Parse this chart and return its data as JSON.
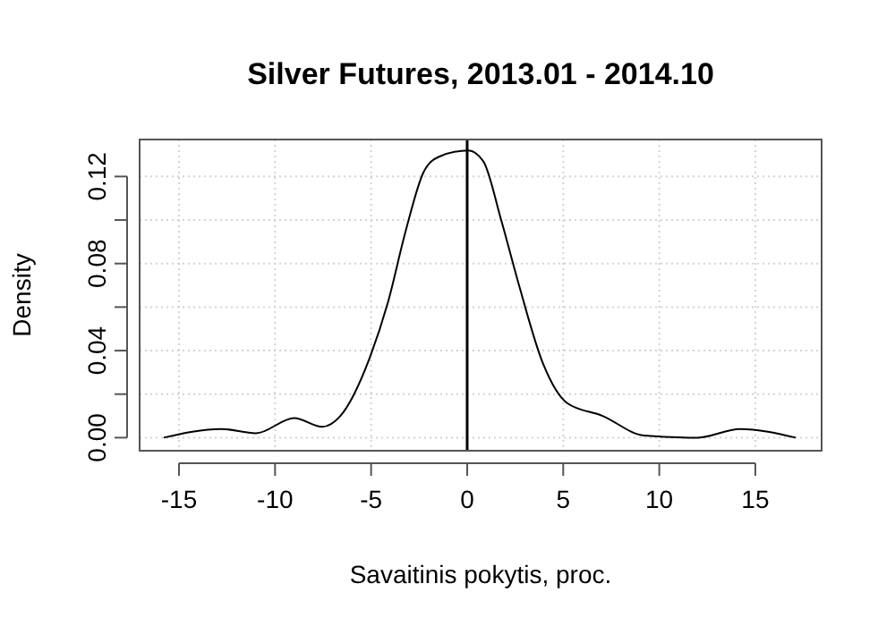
{
  "chart_data": {
    "type": "line",
    "title": "Silver Futures, 2013.01 - 2014.10",
    "xlabel": "Savaitinis pokytis, proc.",
    "ylabel": "Density",
    "x": [
      -15.8,
      -12.8,
      -11.0,
      -9.0,
      -7.55,
      -6.6,
      -5.06,
      -4.13,
      -3.2,
      -2.27,
      -1.49,
      0.06,
      0.84,
      1.77,
      2.7,
      3.95,
      5.19,
      7.05,
      9.2,
      12.0,
      14.2,
      17.1
    ],
    "series": [
      {
        "color": "#000000",
        "values": [
          0,
          0.004,
          0.002,
          0.009,
          0.005,
          0.01,
          0.037,
          0.062,
          0.095,
          0.122,
          0.129,
          0.132,
          0.127,
          0.1,
          0.07,
          0.034,
          0.016,
          0.01,
          0.001,
          0,
          0.004,
          0
        ]
      }
    ],
    "xlim": [
      -17.05,
      18.45
    ],
    "ylim": [
      -0.006,
      0.137
    ],
    "xticks": [
      -15,
      -10,
      -5,
      0,
      5,
      10,
      15
    ],
    "yticks": [
      {
        "value": 0,
        "label": "0.00"
      },
      {
        "value": 0.02,
        "label": null
      },
      {
        "value": 0.04,
        "label": "0.04"
      },
      {
        "value": 0.06,
        "label": null
      },
      {
        "value": 0.08,
        "label": "0.08"
      },
      {
        "value": 0.1,
        "label": null
      },
      {
        "value": 0.12,
        "label": "0.12"
      }
    ],
    "ref_lines": [
      {
        "axis": "x",
        "value": 0,
        "color": "#000000"
      }
    ],
    "grid": true,
    "marker": "none",
    "line_style": "solid"
  }
}
